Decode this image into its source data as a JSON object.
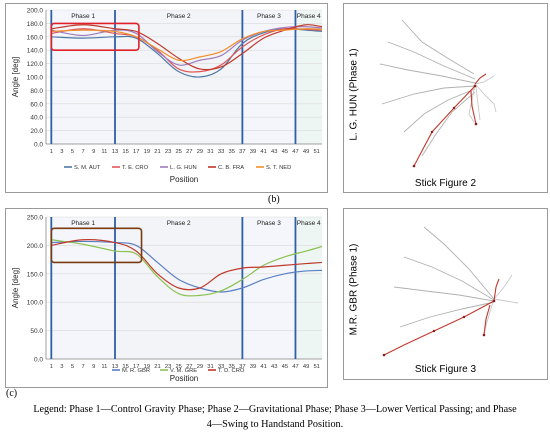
{
  "panels": [
    {
      "letter": "(b)",
      "chart_data": {
        "type": "line",
        "title": "",
        "xlabel": "Position",
        "ylabel": "Angle [deg]",
        "ylim": [
          0,
          200
        ],
        "yticks": [
          "0.0",
          "20.0",
          "40.0",
          "60.0",
          "80.0",
          "100.0",
          "120.0",
          "140.0",
          "160.0",
          "180.0",
          "200.0"
        ],
        "xticks": [
          "1",
          "3",
          "5",
          "7",
          "9",
          "11",
          "13",
          "15",
          "17",
          "19",
          "21",
          "23",
          "25",
          "27",
          "29",
          "31",
          "33",
          "35",
          "37",
          "39",
          "41",
          "43",
          "45",
          "47",
          "49",
          "51"
        ],
        "phases": [
          {
            "label": "Phase 1",
            "start": 1,
            "end": 13
          },
          {
            "label": "Phase 2",
            "start": 13,
            "end": 37
          },
          {
            "label": "Phase 3",
            "start": 37,
            "end": 47
          },
          {
            "label": "Phase 4",
            "start": 47,
            "end": 52
          }
        ],
        "highlight": {
          "x": [
            1,
            17.5
          ],
          "y": [
            140,
            180
          ],
          "color": "#e0202a"
        },
        "x": [
          1,
          7,
          13,
          17,
          21,
          25,
          29,
          33,
          37,
          41,
          45,
          49,
          52
        ],
        "series": [
          {
            "name": "S. M. AUT",
            "color": "#4e79a7",
            "values": [
              160,
              158,
              160,
              158,
              135,
              108,
              100,
              112,
              150,
              166,
              172,
              170,
              168
            ]
          },
          {
            "name": "T. E. CRO",
            "color": "#e15759",
            "values": [
              165,
              172,
              165,
              160,
              140,
              112,
              108,
              118,
              145,
              163,
              172,
              171,
              170
            ]
          },
          {
            "name": "L. G. HUN",
            "color": "#9e7bbd",
            "values": [
              170,
              162,
              170,
              165,
              138,
              118,
              125,
              132,
              155,
              168,
              174,
              175,
              173
            ]
          },
          {
            "name": "C. B. FRA",
            "color": "#c0392b",
            "values": [
              172,
              178,
              172,
              168,
              150,
              128,
              112,
              115,
              135,
              158,
              170,
              178,
              175
            ]
          },
          {
            "name": "S. T. NED",
            "color": "#f28e2b",
            "values": [
              168,
              170,
              168,
              160,
              142,
              125,
              130,
              138,
              157,
              168,
              170,
              172,
              171
            ]
          }
        ]
      }
    },
    {
      "letter": "(c)",
      "chart_data": {
        "type": "line",
        "title": "",
        "xlabel": "Position",
        "ylabel": "Angle [deg]",
        "ylim": [
          0,
          250
        ],
        "yticks": [
          "0.0",
          "50.0",
          "100.0",
          "150.0",
          "200.0",
          "250.0"
        ],
        "xticks": [
          "1",
          "3",
          "5",
          "7",
          "9",
          "11",
          "13",
          "15",
          "17",
          "19",
          "21",
          "23",
          "25",
          "27",
          "29",
          "31",
          "33",
          "35",
          "37",
          "39",
          "41",
          "43",
          "45",
          "47",
          "49",
          "51"
        ],
        "phases": [
          {
            "label": "Phase 1",
            "start": 1,
            "end": 13
          },
          {
            "label": "Phase 2",
            "start": 13,
            "end": 37
          },
          {
            "label": "Phase 3",
            "start": 37,
            "end": 47
          },
          {
            "label": "Phase 4",
            "start": 47,
            "end": 52
          }
        ],
        "highlight": {
          "x": [
            1,
            18
          ],
          "y": [
            170,
            230
          ],
          "color": "#7a3b10"
        },
        "x": [
          1,
          7,
          13,
          17,
          21,
          25,
          29,
          33,
          37,
          41,
          45,
          49,
          52
        ],
        "series": [
          {
            "name": "M. R. GBR",
            "color": "#5b7fc4",
            "values": [
              205,
              207,
              205,
              200,
              170,
              140,
              125,
              118,
              125,
              140,
              150,
              155,
              156
            ]
          },
          {
            "name": "V. M. GRE",
            "color": "#8cc152",
            "values": [
              210,
              202,
              190,
              185,
              145,
              115,
              112,
              120,
              140,
              165,
              180,
              190,
              198
            ]
          },
          {
            "name": "T. D. CRO",
            "color": "#c0392b",
            "values": [
              200,
              210,
              205,
              190,
              150,
              125,
              125,
              150,
              160,
              162,
              165,
              168,
              170
            ]
          }
        ]
      }
    }
  ],
  "stick_figures": [
    {
      "vertical_label": "L. G. HUN (Phase 1)",
      "caption": "Stick Figure 2"
    },
    {
      "vertical_label": "M.R. GBR (Phase 1)",
      "caption": "Stick Figure 3"
    }
  ],
  "legend_line1": "Legend: Phase 1—Control Gravity Phase; Phase 2—Gravitational Phase; Phase 3—Lower Vertical Passing; and Phase",
  "legend_line2": "4—Swing to Handstand Position."
}
